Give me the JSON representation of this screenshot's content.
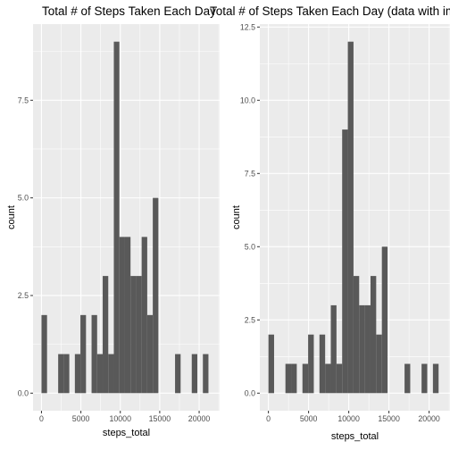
{
  "chart_data": [
    {
      "type": "bar",
      "title": "Total # of Steps Taken Each Day",
      "xlabel": "steps_total",
      "ylabel": "count",
      "x_bin_starts": [
        0,
        706,
        1412,
        2118,
        2824,
        3530,
        4236,
        4942,
        5648,
        6354,
        7060,
        7766,
        8472,
        9178,
        9884,
        10590,
        11296,
        12002,
        12708,
        13414,
        14120,
        14826,
        15532,
        16238,
        16944,
        17650,
        18356,
        19062,
        19768,
        20474,
        21180
      ],
      "x_bin_width": 706,
      "values": [
        2,
        0,
        0,
        1,
        1,
        0,
        1,
        2,
        0,
        2,
        1,
        3,
        1,
        9,
        4,
        4,
        3,
        3,
        4,
        2,
        5,
        0,
        0,
        0,
        1,
        0,
        0,
        1,
        0,
        1,
        0
      ],
      "xlim": [
        -1070,
        22600
      ],
      "ylim": [
        -0.45,
        9.45
      ],
      "x_ticks": [
        0,
        5000,
        10000,
        15000,
        20000
      ],
      "x_tick_labels": [
        "0",
        "5000",
        "10000",
        "15000",
        "20000"
      ],
      "y_ticks": [
        0,
        2.5,
        5,
        7.5
      ],
      "y_tick_labels": [
        "0.0",
        "2.5",
        "5.0",
        "7.5"
      ],
      "grid": true,
      "panel_color": "#ebebeb",
      "grid_color": "#ffffff",
      "bar_color": "#595959"
    },
    {
      "type": "bar",
      "title": "Total # of Steps Taken Each Day (data with imp",
      "xlabel": "steps_total",
      "ylabel": "count",
      "x_bin_starts": [
        0,
        706,
        1412,
        2118,
        2824,
        3530,
        4236,
        4942,
        5648,
        6354,
        7060,
        7766,
        8472,
        9178,
        9884,
        10590,
        11296,
        12002,
        12708,
        13414,
        14120,
        14826,
        15532,
        16238,
        16944,
        17650,
        18356,
        19062,
        19768,
        20474,
        21180
      ],
      "x_bin_width": 706,
      "values": [
        2,
        0,
        0,
        1,
        1,
        0,
        1,
        2,
        0,
        2,
        1,
        3,
        1,
        9,
        12,
        4,
        3,
        3,
        4,
        2,
        5,
        0,
        0,
        0,
        1,
        0,
        0,
        1,
        0,
        1,
        0
      ],
      "xlim": [
        -1070,
        22600
      ],
      "ylim": [
        -0.6,
        12.6
      ],
      "x_ticks": [
        0,
        5000,
        10000,
        15000,
        20000
      ],
      "x_tick_labels": [
        "0",
        "5000",
        "10000",
        "15000",
        "20000"
      ],
      "y_ticks": [
        0,
        2.5,
        5,
        7.5,
        10,
        12.5
      ],
      "y_tick_labels": [
        "0.0",
        "2.5",
        "5.0",
        "7.5",
        "10.0",
        "12.5"
      ],
      "grid": true,
      "panel_color": "#ebebeb",
      "grid_color": "#ffffff",
      "bar_color": "#595959"
    }
  ]
}
